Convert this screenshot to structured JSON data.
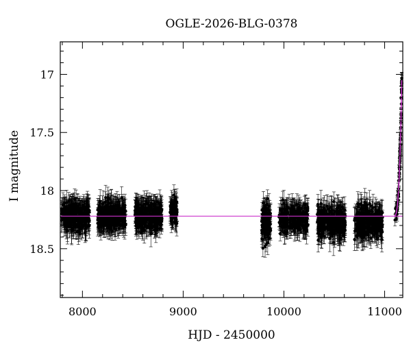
{
  "chart_data": {
    "type": "scatter",
    "title": "OGLE-2026-BLG-0378",
    "xlabel": "HJD - 2450000",
    "ylabel": "I magnitude",
    "xlim": [
      7780,
      11180
    ],
    "ylim": [
      18.92,
      16.72
    ],
    "y_inverted": true,
    "x_ticks": [
      8000,
      9000,
      10000,
      11000
    ],
    "x_tick_labels": [
      "8000",
      "9000",
      "10000",
      "11000"
    ],
    "y_ticks": [
      17,
      17.5,
      18,
      18.5
    ],
    "y_tick_labels": [
      "17",
      "17.5",
      "18",
      "18.5"
    ],
    "baseline_magnitude": 18.22,
    "point_color": "#000000",
    "model_color": "#cc33cc",
    "grid": false,
    "legend": "none",
    "seasons": [
      {
        "x_start": 7790,
        "x_end": 8070,
        "mean": 18.22,
        "spread": 0.11,
        "count": 320
      },
      {
        "x_start": 8150,
        "x_end": 8430,
        "mean": 18.22,
        "spread": 0.1,
        "count": 300
      },
      {
        "x_start": 8520,
        "x_end": 8790,
        "mean": 18.22,
        "spread": 0.1,
        "count": 300
      },
      {
        "x_start": 8870,
        "x_end": 8940,
        "mean": 18.18,
        "spread": 0.09,
        "count": 70
      },
      {
        "x_start": 9780,
        "x_end": 9870,
        "mean": 18.27,
        "spread": 0.14,
        "count": 110
      },
      {
        "x_start": 9950,
        "x_end": 10240,
        "mean": 18.24,
        "spread": 0.1,
        "count": 260
      },
      {
        "x_start": 10330,
        "x_end": 10610,
        "mean": 18.27,
        "spread": 0.12,
        "count": 300
      },
      {
        "x_start": 10700,
        "x_end": 10980,
        "mean": 18.27,
        "spread": 0.12,
        "count": 300
      }
    ],
    "event": {
      "x_start": 11090,
      "x_end": 11170,
      "peak_x": 11170,
      "peak_magnitude": 17.05,
      "baseline": 18.22
    }
  }
}
